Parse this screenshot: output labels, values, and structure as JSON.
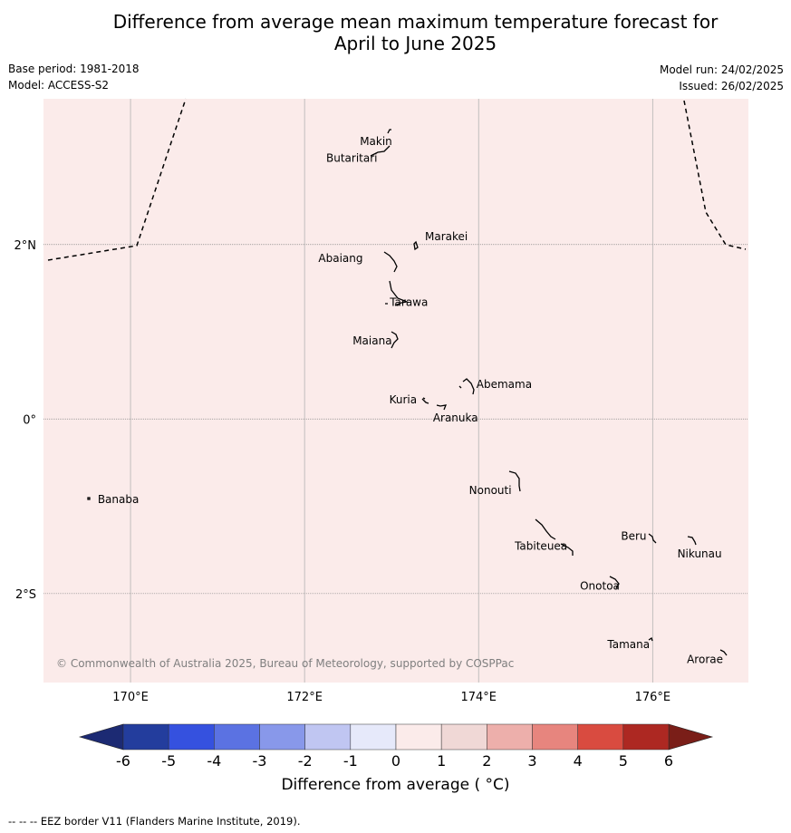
{
  "header": {
    "title_line1": "Difference from average mean maximum temperature forecast for",
    "title_line2": "April to June 2025",
    "base_period": "Base period: 1981-2018",
    "model": "Model: ACCESS-S2",
    "model_run": "Model run: 24/02/2025",
    "issued": "Issued: 26/02/2025"
  },
  "map": {
    "background_color": "#fbebea",
    "lon_range": [
      169.0,
      177.1
    ],
    "lat_range": [
      -3.02,
      3.67
    ],
    "lon_ticks": [
      {
        "value": 170,
        "label": "170°E"
      },
      {
        "value": 172,
        "label": "172°E"
      },
      {
        "value": 174,
        "label": "174°E"
      },
      {
        "value": 176,
        "label": "176°E"
      }
    ],
    "lat_ticks": [
      {
        "value": 2,
        "label": "2°N"
      },
      {
        "value": 0,
        "label": "0°"
      },
      {
        "value": -2,
        "label": "2°S"
      }
    ],
    "islands": [
      {
        "name": "Makin",
        "lon": 173.0,
        "lat": 3.18
      },
      {
        "name": "Butaritari",
        "lon": 172.8,
        "lat": 3.05
      },
      {
        "name": "Marakei",
        "lon": 173.3,
        "lat": 2.0
      },
      {
        "name": "Abaiang",
        "lon": 172.95,
        "lat": 1.8
      },
      {
        "name": "Tarawa",
        "lon": 173.0,
        "lat": 1.4
      },
      {
        "name": "Maiana",
        "lon": 173.0,
        "lat": 0.93
      },
      {
        "name": "Abemama",
        "lon": 173.87,
        "lat": 0.4
      },
      {
        "name": "Kuria",
        "lon": 173.4,
        "lat": 0.23
      },
      {
        "name": "Aranuka",
        "lon": 173.6,
        "lat": 0.16
      },
      {
        "name": "Nonouti",
        "lon": 174.4,
        "lat": -0.67
      },
      {
        "name": "Banaba",
        "lon": 169.55,
        "lat": -0.87
      },
      {
        "name": "Tabiteuea",
        "lon": 174.8,
        "lat": -1.3
      },
      {
        "name": "Beru",
        "lon": 175.99,
        "lat": -1.33
      },
      {
        "name": "Nikunau",
        "lon": 176.45,
        "lat": -1.35
      },
      {
        "name": "Onotoa",
        "lon": 175.55,
        "lat": -1.8
      },
      {
        "name": "Tamana",
        "lon": 175.98,
        "lat": -2.5
      },
      {
        "name": "Arorae",
        "lon": 176.82,
        "lat": -2.63
      }
    ],
    "copyright": "© Commonwealth of Australia 2025, Bureau of Meteorology, supported by COSPPac"
  },
  "colorbar": {
    "label": "Difference from average ( °C)",
    "ticks": [
      "-6",
      "-5",
      "-4",
      "-3",
      "-2",
      "-1",
      "0",
      "1",
      "2",
      "3",
      "4",
      "5",
      "6"
    ],
    "colors": [
      "#233d9d",
      "#3551df",
      "#5b72e2",
      "#8898ea",
      "#c0c6f2",
      "#e6e9fa",
      "#fbebea",
      "#f0d8d6",
      "#edafab",
      "#e7857e",
      "#d94b40",
      "#ad2822"
    ],
    "under_color": "#1c2a73",
    "over_color": "#7a1e18"
  },
  "footer": {
    "legend": "--  --  -- EEZ border V11 (Flanders Marine Institute, 2019)."
  }
}
